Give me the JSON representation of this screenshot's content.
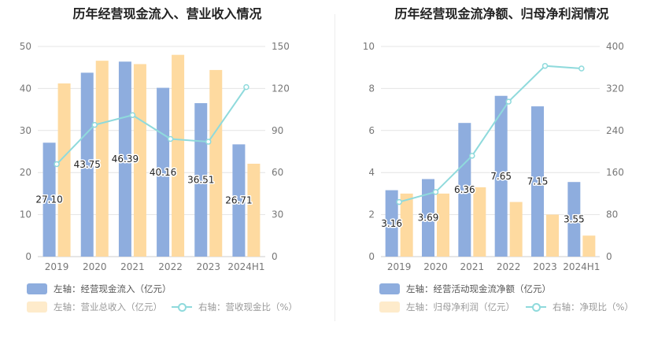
{
  "colors": {
    "bar_primary": "#8eadde",
    "bar_secondary": "#fedaa0",
    "line": "#8fdadc",
    "grid": "#e4e4e4",
    "tick": "#777777"
  },
  "chart_data": [
    {
      "type": "bar",
      "title": "历年经营现金流入、营业收入情况",
      "categories": [
        "2019",
        "2020",
        "2021",
        "2022",
        "2023",
        "2024H1"
      ],
      "y_left": {
        "min": 0,
        "max": 50,
        "ticks": [
          "0",
          "10",
          "20",
          "30",
          "40",
          "50"
        ]
      },
      "y_right": {
        "min": 0,
        "max": 150,
        "ticks": [
          "0",
          "30",
          "60",
          "90",
          "120",
          "150"
        ]
      },
      "series": [
        {
          "name": "左轴：经营现金流入（亿元）",
          "kind": "bar",
          "axis": "left",
          "values": [
            27.1,
            43.75,
            46.39,
            40.16,
            36.51,
            26.71
          ],
          "labels": [
            "27.10",
            "43.75",
            "46.39",
            "40.16",
            "36.51",
            "26.71"
          ]
        },
        {
          "name": "左轴：营业总收入（亿元）",
          "kind": "bar",
          "axis": "left",
          "values": [
            41.2,
            46.6,
            45.8,
            48.0,
            44.4,
            22.1
          ]
        },
        {
          "name": "右轴：营收现金比（%）",
          "kind": "line",
          "axis": "right",
          "values": [
            66,
            94,
            101,
            84,
            82,
            121
          ]
        }
      ]
    },
    {
      "type": "bar",
      "title": "历年经营现金流净额、归母净利润情况",
      "categories": [
        "2019",
        "2020",
        "2021",
        "2022",
        "2023",
        "2024H1"
      ],
      "y_left": {
        "min": 0,
        "max": 10,
        "ticks": [
          "0",
          "2",
          "4",
          "6",
          "8",
          "10"
        ]
      },
      "y_right": {
        "min": 0,
        "max": 400,
        "ticks": [
          "0",
          "80",
          "160",
          "240",
          "320",
          "400"
        ]
      },
      "series": [
        {
          "name": "左轴：经营活动现金流净额（亿元）",
          "kind": "bar",
          "axis": "left",
          "values": [
            3.16,
            3.69,
            6.36,
            7.65,
            7.15,
            3.55
          ],
          "labels": [
            "3.16",
            "3.69",
            "6.36",
            "7.65",
            "7.15",
            "3.55"
          ]
        },
        {
          "name": "左轴：归母净利润（亿元）",
          "kind": "bar",
          "axis": "left",
          "values": [
            3.0,
            3.0,
            3.3,
            2.6,
            2.0,
            1.0
          ]
        },
        {
          "name": "右轴：净现比（%）",
          "kind": "line",
          "axis": "right",
          "values": [
            104,
            123,
            192,
            295,
            363,
            358
          ]
        }
      ]
    }
  ]
}
